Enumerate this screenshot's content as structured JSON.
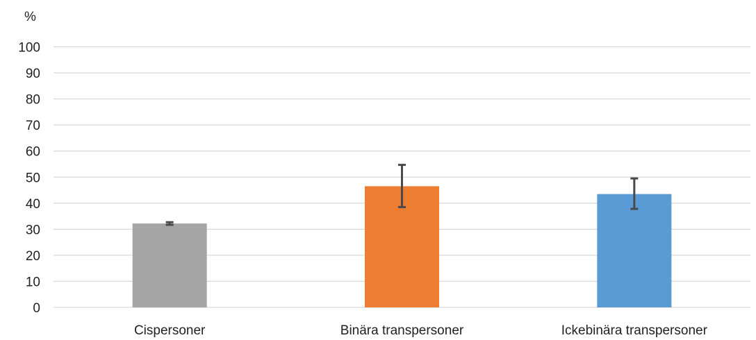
{
  "chart_data": {
    "type": "bar",
    "unit_label": "%",
    "categories": [
      "Cispersoner",
      "Binära transpersoner",
      "Ickebinära transpersoner"
    ],
    "values": [
      32.2,
      46.5,
      43.5
    ],
    "error_low": [
      31.7,
      38.5,
      37.8
    ],
    "error_high": [
      32.7,
      54.7,
      49.5
    ],
    "colors": [
      "#a5a5a5",
      "#ed7d31",
      "#5b9bd5"
    ],
    "ylim": [
      0,
      100
    ],
    "yticks": [
      0,
      10,
      20,
      30,
      40,
      50,
      60,
      70,
      80,
      90,
      100
    ],
    "grid": true,
    "legend": "none"
  }
}
